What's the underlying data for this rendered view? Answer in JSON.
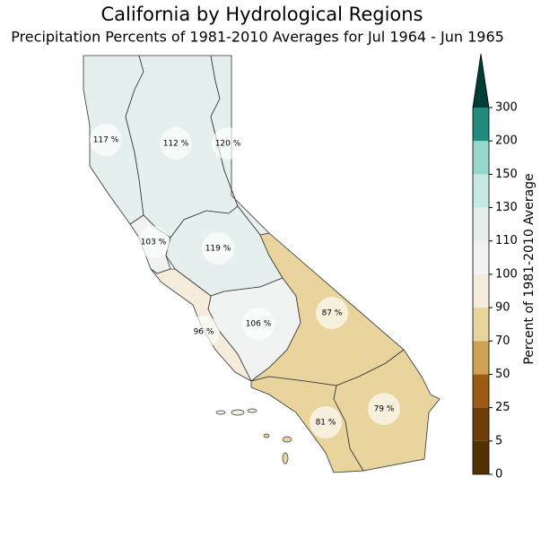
{
  "title": "California by Hydrological Regions",
  "subtitle": "Precipitation Percents of 1981-2010 Averages for Jul 1964 - Jun 1965",
  "regions": {
    "values": [
      117,
      112,
      120,
      103,
      119,
      106,
      96,
      87,
      81,
      79
    ],
    "value_labels": [
      "117 %",
      "112 %",
      "120 %",
      "103 %",
      "119 %",
      "106 %",
      "96 %",
      "87 %",
      "81 %",
      "79 %"
    ]
  },
  "colorbar": {
    "label": "Percent of 1981-2010 Average",
    "ticks": [
      0,
      5,
      25,
      50,
      70,
      90,
      100,
      110,
      130,
      150,
      200,
      300
    ],
    "colors": [
      "#543005",
      "#6e3d08",
      "#9c5b12",
      "#cfa152",
      "#e9d49e",
      "#f5ecdb",
      "#f1f3f2",
      "#e4efee",
      "#c6eae3",
      "#97d6cb",
      "#238a80"
    ],
    "extend_color": "#003d36"
  }
}
